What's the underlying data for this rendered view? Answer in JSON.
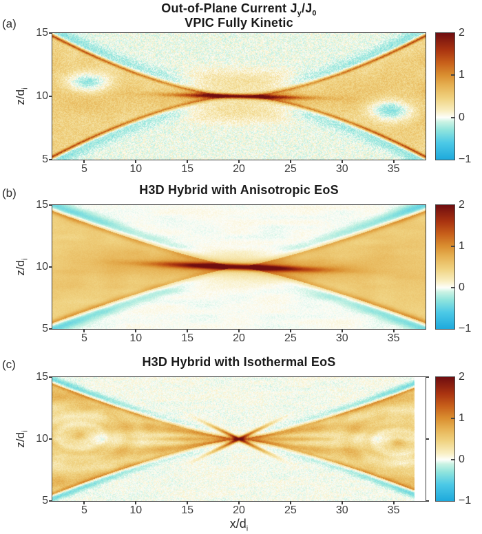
{
  "suptitle": {
    "pre": "Out-of-Plane Current J",
    "sub1": "y",
    "mid": "/J",
    "sub2": "0"
  },
  "xlabel": {
    "base": "x/d",
    "sub": "i"
  },
  "ylabel": {
    "base": "z/d",
    "sub": "i"
  },
  "colormap": [
    {
      "v": -1.0,
      "c": "#1ea9dc"
    },
    {
      "v": -0.6,
      "c": "#4cc9e6"
    },
    {
      "v": -0.3,
      "c": "#8fe4dd"
    },
    {
      "v": -0.1,
      "c": "#ccf3e4"
    },
    {
      "v": 0.0,
      "c": "#fdfefa"
    },
    {
      "v": 0.15,
      "c": "#f9efc4"
    },
    {
      "v": 0.45,
      "c": "#f0d382"
    },
    {
      "v": 0.75,
      "c": "#e6b254"
    },
    {
      "v": 1.0,
      "c": "#da8f30"
    },
    {
      "v": 1.3,
      "c": "#c75f1a"
    },
    {
      "v": 1.6,
      "c": "#a93310"
    },
    {
      "v": 2.0,
      "c": "#6f0d10"
    }
  ],
  "chart_data": [
    {
      "type": "heatmap",
      "panel_label": "(a)",
      "title": "VPIC Fully Kinetic",
      "xlabel": "x/d_i",
      "ylabel": "z/d_i",
      "xlim": [
        1.9,
        38.1
      ],
      "ylim": [
        5,
        15
      ],
      "clim": [
        -1,
        2
      ],
      "xticks": [
        5,
        10,
        15,
        20,
        25,
        30,
        35
      ],
      "yticks": [
        15,
        10,
        5
      ],
      "colorbar_ticks": [
        2,
        1,
        0,
        -1
      ],
      "description": "Speckled kinetic simulation: golden reconnection lobes, dark-red separatrix arcs and tilted central current sheet crossing at x=20 z=10, cyan island cores near x=5 z=11 and x=35 z=9, pale-gold outflow patch around the X-line",
      "style": "kinetic",
      "render": {
        "seed": 11,
        "noise": 0.34,
        "lobe_h": 4.9,
        "lobe_p": 1.6
      }
    },
    {
      "type": "heatmap",
      "panel_label": "(b)",
      "title": "H3D Hybrid with Anisotropic EoS",
      "xlabel": "x/d_i",
      "ylabel": "z/d_i",
      "xlim": [
        1.9,
        38.1
      ],
      "ylim": [
        5,
        15
      ],
      "clim": [
        -1,
        2
      ],
      "xticks": [
        5,
        10,
        15,
        20,
        25,
        30,
        35
      ],
      "yticks": [
        15,
        10,
        5
      ],
      "colorbar_ticks": [
        2,
        1,
        0,
        -1
      ],
      "description": "Smooth hybrid run: broad golden lobes, intense dark-red current sheet along the midplane between x=14 and x=26, orange separatrix rims, cyan bands hugging the lobe boundaries near the domain edges",
      "style": "anisotropic",
      "render": {
        "seed": 23,
        "noise": 0.1,
        "lobe_h": 4.6,
        "lobe_p": 1.22
      }
    },
    {
      "type": "heatmap",
      "panel_label": "(c)",
      "title": "H3D Hybrid with Isothermal EoS",
      "xlabel": "x/d_i",
      "ylabel": "z/d_i",
      "xlim": [
        1.9,
        38.1
      ],
      "ylim": [
        5,
        15
      ],
      "clim": [
        -1,
        2
      ],
      "xticks": [
        5,
        10,
        15,
        20,
        25,
        30,
        35
      ],
      "yticks": [
        15,
        10,
        5
      ],
      "colorbar_ticks": [
        2,
        1,
        0,
        -1
      ],
      "description": "Striated isothermal run: filamentary golden lobes with concentric island rings and thin cyan arcs, sharp dark-red X at x=20 z=10, data ends near x=37 leaving a white strip before the right axis",
      "style": "isothermal",
      "render": {
        "seed": 37,
        "noise": 0.22,
        "lobe_h": 4.55,
        "lobe_p": 1.3,
        "data_xmax": 37.05
      }
    }
  ]
}
